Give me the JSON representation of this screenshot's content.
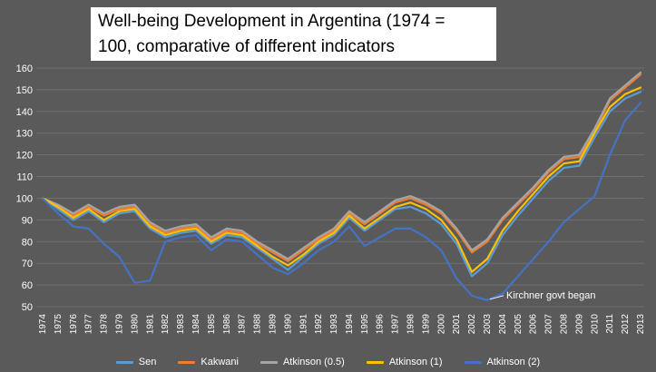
{
  "title": {
    "text": "Well-being Development in Argentina (1974 =\n100, comparative of different indicators"
  },
  "colors": {
    "background": "#5a5a5a",
    "gridline": "#6f6f6f",
    "axis_text": "#ffffff",
    "annotation_text": "#ffffff",
    "title_background": "#ffffff",
    "title_text": "#000000"
  },
  "chart_data": {
    "type": "line",
    "title": "Well-being Development in Argentina (1974 = 100, comparative of different indicators",
    "xlabel": "",
    "ylabel": "",
    "ylim": [
      50,
      160
    ],
    "ytick_step": 10,
    "grid": true,
    "legend_position": "bottom",
    "x": [
      1974,
      1975,
      1976,
      1977,
      1978,
      1979,
      1980,
      1981,
      1982,
      1983,
      1984,
      1985,
      1986,
      1987,
      1988,
      1989,
      1990,
      1991,
      1992,
      1993,
      1994,
      1995,
      1996,
      1997,
      1998,
      1999,
      2000,
      2001,
      2002,
      2003,
      2004,
      2005,
      2006,
      2007,
      2008,
      2009,
      2010,
      2011,
      2012,
      2013
    ],
    "series": [
      {
        "name": "Sen",
        "color": "#5B9BD5",
        "values": [
          100,
          95,
          90,
          94,
          89,
          93,
          94,
          86,
          82,
          84,
          85,
          79,
          83,
          82,
          77,
          72,
          67,
          73,
          79,
          83,
          91,
          85,
          90,
          95,
          96,
          93,
          88,
          79,
          64,
          70,
          83,
          92,
          100,
          108,
          114,
          115,
          128,
          140,
          146,
          149
        ]
      },
      {
        "name": "Kakwani",
        "color": "#ED7D31",
        "values": [
          100,
          96,
          92,
          96,
          92,
          95,
          96,
          88,
          84,
          86,
          87,
          81,
          85,
          84,
          79,
          75,
          71,
          76,
          81,
          85,
          93,
          88,
          93,
          98,
          100,
          97,
          93,
          85,
          75,
          80,
          90,
          97,
          104,
          112,
          118,
          119,
          131,
          145,
          151,
          157
        ]
      },
      {
        "name": "Atkinson (0.5)",
        "color": "#A5A5A5",
        "values": [
          100,
          97,
          93,
          97,
          93,
          96,
          97,
          89,
          85,
          87,
          88,
          82,
          86,
          85,
          80,
          76,
          72,
          77,
          82,
          86,
          94,
          89,
          94,
          99,
          101,
          98,
          94,
          86,
          76,
          81,
          91,
          98,
          105,
          113,
          119,
          120,
          132,
          146,
          152,
          158
        ]
      },
      {
        "name": "Atkinson (1)",
        "color": "#FFC000",
        "values": [
          100,
          96,
          91,
          95,
          90,
          94,
          95,
          87,
          83,
          85,
          86,
          80,
          84,
          83,
          78,
          73,
          69,
          74,
          80,
          84,
          92,
          86,
          91,
          96,
          98,
          95,
          90,
          81,
          66,
          72,
          85,
          94,
          102,
          110,
          116,
          117,
          130,
          142,
          148,
          151
        ]
      },
      {
        "name": "Atkinson (2)",
        "color": "#4472C4",
        "values": [
          100,
          93,
          87,
          86,
          79,
          73,
          61,
          62,
          80,
          82,
          83,
          76,
          81,
          80,
          74,
          68,
          65,
          70,
          76,
          80,
          87,
          78,
          82,
          86,
          86,
          82,
          76,
          63,
          55,
          53,
          56,
          64,
          72,
          80,
          89,
          95,
          101,
          120,
          136,
          144
        ]
      }
    ],
    "annotation": {
      "text": "Kirchner govt began",
      "x": 2003,
      "y": 53
    }
  }
}
